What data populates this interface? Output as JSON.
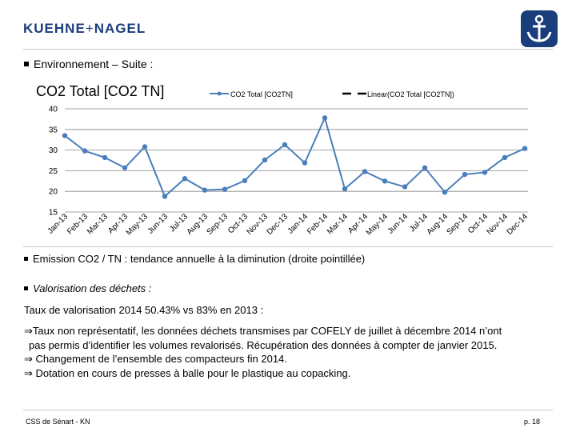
{
  "header": {
    "logo_left": "KUEHNE",
    "logo_plus": "+",
    "logo_right": "NAGEL"
  },
  "section": {
    "title": "Environnement – Suite :"
  },
  "chart_title": "CO2 Total [CO2 TN]",
  "chart_data": {
    "type": "line",
    "title": "CO2 Total [CO2 TN]",
    "categories": [
      "Jan-13",
      "Feb-13",
      "Mar-13",
      "Apr-13",
      "May-13",
      "Jun-13",
      "Jul-13",
      "Aug-13",
      "Sep-13",
      "Oct-13",
      "Nov-13",
      "Dec-13",
      "Jan-14",
      "Feb-14",
      "Mar-14",
      "Apr-14",
      "May-14",
      "Jun-14",
      "Jul-14",
      "Aug-14",
      "Sep-14",
      "Oct-14",
      "Nov-14",
      "Dec-14"
    ],
    "series": [
      {
        "name": "CO2 Total [CO2TN]",
        "values": [
          33.5,
          29.8,
          28.2,
          25.7,
          30.8,
          18.8,
          23.1,
          20.3,
          20.5,
          22.6,
          27.6,
          31.3,
          26.9,
          37.8,
          20.6,
          24.8,
          22.5,
          21.1,
          25.7,
          19.8,
          24.1,
          24.6,
          28.2,
          30.4
        ]
      },
      {
        "name": "Linear(CO2 Total [CO2TN])",
        "style": "dashed"
      }
    ],
    "ylim": [
      15,
      40
    ],
    "yticks": [
      15,
      20,
      25,
      30,
      35,
      40
    ],
    "legend_position": "top",
    "grid": true,
    "colors": {
      "series": "#4a7ebb",
      "grid": "#868686",
      "trend": "#000000"
    }
  },
  "note": "Emission CO2 / TN : tendance annuelle à la diminution (droite pointillée)",
  "waste": {
    "subtitle": "Valorisation des déchets :",
    "rate": "Taux de valorisation 2014 50.43% vs 83% en 2013 :",
    "point1_line1": "Taux non représentatif, les données déchets transmises par COFELY de juillet à décembre 2014 n’ont",
    "point1_line2": "pas permis d’identifier les volumes revalorisés. Récupération des données à compter de janvier 2015.",
    "point2": "Changement de l’ensemble des compacteurs fin 2014.",
    "point3": "Dotation en cours de presses à balle pour le plastique au copacking.",
    "arrow": "⇒"
  },
  "footer": {
    "left": "CSS de Sénart - KN",
    "page": "p. 18"
  }
}
